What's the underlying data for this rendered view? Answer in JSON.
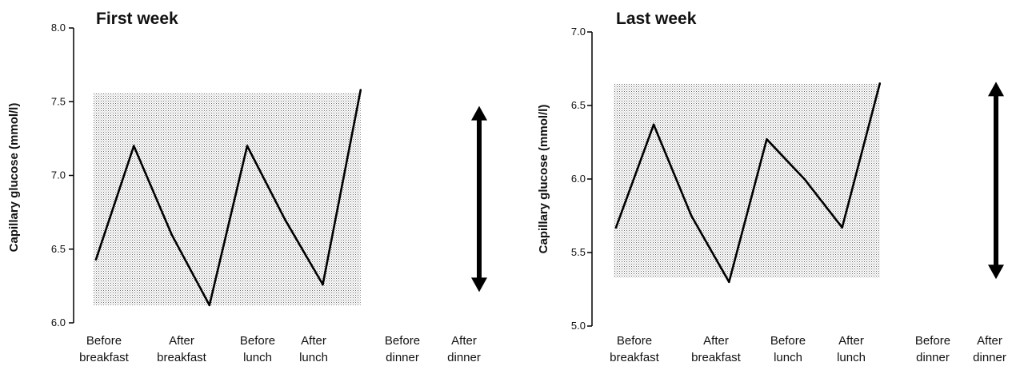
{
  "chart_data": [
    {
      "type": "line",
      "title": "First week",
      "ylabel": "Capillary glucose (mmol/l)",
      "xlabel": "",
      "ylim": [
        6.0,
        8.0
      ],
      "yticks": [
        "6.0",
        "6.5",
        "7.0",
        "7.5",
        "8.0"
      ],
      "categories": [
        [
          "Before",
          "breakfast"
        ],
        [
          "After",
          "breakfast"
        ],
        [
          "Before",
          "lunch"
        ],
        [
          "After",
          "lunch"
        ],
        [
          "Before",
          "dinner"
        ],
        [
          "After",
          "dinner"
        ]
      ],
      "category_x": [
        0,
        1,
        2.5,
        3,
        4.5,
        5.3
      ],
      "series": [
        {
          "x": [
            0,
            0.7,
            1.4,
            2.1,
            2.8,
            3.5,
            4.2,
            4.9
          ],
          "values": [
            6.43,
            7.2,
            6.6,
            6.12,
            7.2,
            6.7,
            6.26,
            7.58
          ]
        }
      ],
      "shaded_range": [
        6.12,
        7.56
      ],
      "range_arrow": [
        6.22,
        7.46
      ],
      "grid": false
    },
    {
      "type": "line",
      "title": "Last week",
      "ylabel": "Capillary glucose (mmol/l)",
      "xlabel": "",
      "ylim": [
        5.0,
        7.0
      ],
      "yticks": [
        "5.0",
        "5.5",
        "6.0",
        "6.5",
        "7.0"
      ],
      "categories": [
        [
          "Before",
          "breakfast"
        ],
        [
          "After",
          "breakfast"
        ],
        [
          "Before",
          "lunch"
        ],
        [
          "After",
          "lunch"
        ],
        [
          "Before",
          "dinner"
        ],
        [
          "After",
          "dinner"
        ]
      ],
      "category_x": [
        0,
        1,
        2,
        3,
        4,
        5
      ],
      "series": [
        {
          "x": [
            0,
            0.7,
            1.4,
            2.1,
            2.8,
            3.5,
            4.2,
            4.9
          ],
          "values": [
            5.67,
            6.37,
            5.75,
            5.3,
            6.27,
            6.0,
            5.67,
            6.65
          ]
        }
      ],
      "shaded_range": [
        5.33,
        6.65
      ],
      "range_arrow": [
        5.33,
        6.65
      ],
      "grid": false
    }
  ]
}
